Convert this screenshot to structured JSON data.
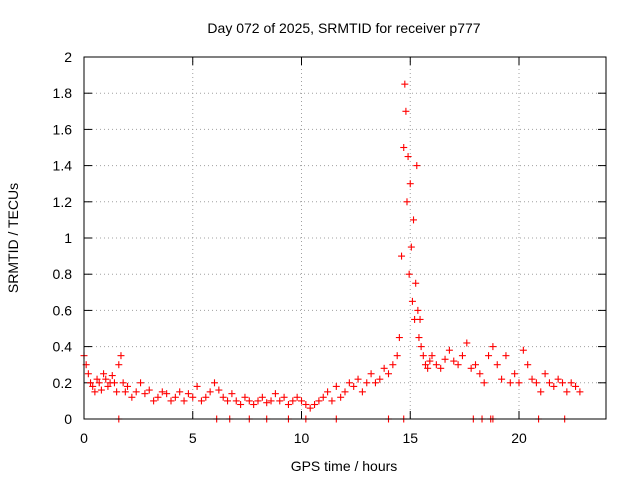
{
  "chart_data": {
    "type": "scatter",
    "title": "Day 072 of 2025, SRMTID for receiver p777",
    "xlabel": "GPS time / hours",
    "ylabel": "SRMTID / TECUs",
    "xlim": [
      0,
      24
    ],
    "ylim": [
      0,
      2
    ],
    "xticks": [
      0,
      5,
      10,
      15,
      20
    ],
    "xtick_labels": [
      "0",
      "5",
      "10",
      "15",
      "20"
    ],
    "yticks": [
      0,
      0.2,
      0.4,
      0.6,
      0.8,
      1,
      1.2,
      1.4,
      1.6,
      1.8,
      2
    ],
    "ytick_labels": [
      "0",
      "0.2",
      "0.4",
      "0.6",
      "0.8",
      "1",
      "1.2",
      "1.4",
      "1.6",
      "1.8",
      "2"
    ],
    "grid": true,
    "marker": "+",
    "color": "#ff0000",
    "series": [
      {
        "name": "SRMTID",
        "x": [
          0.0,
          0.1,
          0.2,
          0.3,
          0.4,
          0.5,
          0.6,
          0.7,
          0.8,
          0.9,
          1.0,
          1.1,
          1.2,
          1.3,
          1.4,
          1.5,
          1.6,
          1.7,
          1.8,
          1.9,
          2.0,
          2.2,
          2.4,
          2.6,
          2.8,
          3.0,
          3.2,
          3.4,
          3.6,
          3.8,
          4.0,
          4.2,
          4.4,
          4.6,
          4.8,
          5.0,
          5.2,
          5.4,
          5.6,
          5.8,
          6.0,
          6.2,
          6.4,
          6.6,
          6.8,
          7.0,
          7.2,
          7.4,
          7.6,
          7.8,
          8.0,
          8.2,
          8.4,
          8.6,
          8.8,
          9.0,
          9.2,
          9.4,
          9.6,
          9.8,
          10.0,
          10.2,
          10.4,
          10.6,
          10.8,
          11.0,
          11.2,
          11.4,
          11.6,
          11.8,
          12.0,
          12.2,
          12.4,
          12.6,
          12.8,
          13.0,
          13.2,
          13.4,
          13.6,
          13.8,
          14.0,
          14.2,
          14.4,
          14.5,
          14.6,
          14.7,
          14.75,
          14.8,
          14.85,
          14.9,
          14.95,
          15.0,
          15.05,
          15.1,
          15.15,
          15.2,
          15.25,
          15.3,
          15.35,
          15.4,
          15.45,
          15.5,
          15.6,
          15.7,
          15.8,
          15.9,
          16.0,
          16.2,
          16.4,
          16.6,
          16.8,
          17.0,
          17.2,
          17.4,
          17.6,
          17.8,
          18.0,
          18.2,
          18.4,
          18.6,
          18.8,
          19.0,
          19.2,
          19.4,
          19.6,
          19.8,
          20.0,
          20.2,
          20.4,
          20.6,
          20.8,
          21.0,
          21.2,
          21.4,
          21.6,
          21.8,
          22.0,
          22.2,
          22.4,
          22.6,
          22.8
        ],
        "y": [
          0.35,
          0.3,
          0.25,
          0.2,
          0.18,
          0.15,
          0.22,
          0.2,
          0.16,
          0.25,
          0.22,
          0.18,
          0.2,
          0.24,
          0.2,
          0.15,
          0.3,
          0.35,
          0.2,
          0.15,
          0.18,
          0.12,
          0.15,
          0.2,
          0.14,
          0.16,
          0.1,
          0.12,
          0.15,
          0.14,
          0.1,
          0.12,
          0.15,
          0.1,
          0.14,
          0.12,
          0.18,
          0.1,
          0.12,
          0.15,
          0.2,
          0.16,
          0.12,
          0.1,
          0.14,
          0.1,
          0.08,
          0.12,
          0.1,
          0.08,
          0.1,
          0.12,
          0.09,
          0.1,
          0.14,
          0.1,
          0.12,
          0.08,
          0.1,
          0.12,
          0.1,
          0.08,
          0.06,
          0.08,
          0.1,
          0.12,
          0.15,
          0.1,
          0.18,
          0.12,
          0.15,
          0.2,
          0.18,
          0.22,
          0.15,
          0.2,
          0.25,
          0.2,
          0.22,
          0.28,
          0.25,
          0.3,
          0.35,
          0.45,
          0.9,
          1.5,
          1.85,
          1.7,
          1.2,
          1.45,
          0.8,
          1.3,
          0.95,
          0.65,
          1.1,
          0.55,
          0.75,
          1.4,
          0.6,
          0.45,
          0.55,
          0.4,
          0.35,
          0.3,
          0.28,
          0.32,
          0.35,
          0.3,
          0.28,
          0.33,
          0.38,
          0.32,
          0.3,
          0.35,
          0.42,
          0.28,
          0.3,
          0.25,
          0.2,
          0.35,
          0.4,
          0.3,
          0.22,
          0.35,
          0.2,
          0.25,
          0.2,
          0.38,
          0.3,
          0.22,
          0.2,
          0.15,
          0.25,
          0.2,
          0.18,
          0.22,
          0.2,
          0.15,
          0.2,
          0.18,
          0.15
        ]
      }
    ],
    "zero_points_x": [
      1.6,
      6.1,
      6.7,
      7.6,
      8.4,
      9.4,
      10.2,
      11.6,
      14.0,
      14.7,
      17.9,
      18.3,
      18.7,
      18.8,
      20.9,
      22.1
    ]
  }
}
